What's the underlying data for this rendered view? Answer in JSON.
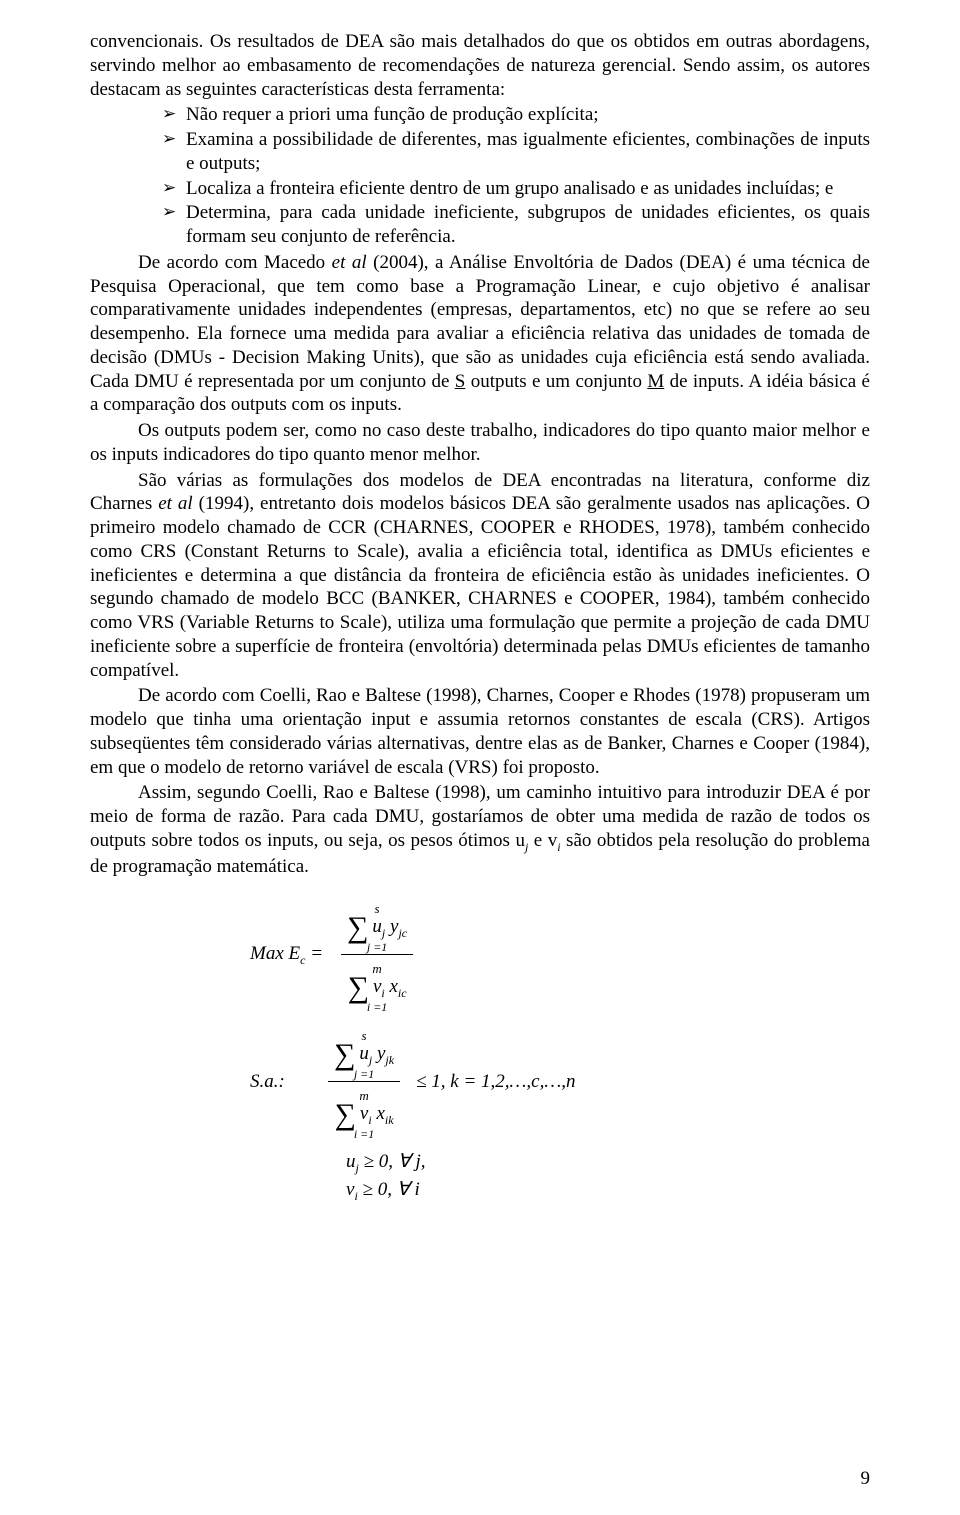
{
  "para1": "convencionais. Os resultados de DEA são mais detalhados do que os obtidos em outras abordagens, servindo melhor ao embasamento de recomendações de natureza gerencial. Sendo assim, os autores destacam as seguintes características desta ferramenta:",
  "bullets": {
    "b1": "Não requer a priori uma função de produção explícita;",
    "b2": "Examina a possibilidade de diferentes, mas igualmente eficientes, combinações de inputs e outputs;",
    "b3": "Localiza a fronteira eficiente dentro de um grupo analisado e as unidades incluídas; e",
    "b4": "Determina, para cada unidade ineficiente, subgrupos de unidades eficientes, os quais formam seu conjunto de referência."
  },
  "para2a": "De acordo com Macedo ",
  "para2b": "et al",
  "para2c": " (2004), a Análise Envoltória de Dados (DEA) é uma técnica de Pesquisa Operacional, que tem como base a Programação Linear, e cujo objetivo é analisar comparativamente unidades independentes (empresas, departamentos, etc) no que se refere ao seu desempenho. Ela fornece uma medida para avaliar a eficiência relativa das unidades de tomada de decisão (DMUs - Decision Making Units), que são as unidades cuja eficiência está sendo avaliada. Cada DMU é representada por um conjunto de ",
  "para2d": "S",
  "para2e": " outputs e um conjunto ",
  "para2f": "M",
  "para2g": " de inputs. A idéia básica é a comparação dos outputs com os inputs.",
  "para3": "Os outputs podem ser, como no caso deste trabalho, indicadores do tipo quanto maior melhor e os inputs indicadores do tipo quanto menor melhor.",
  "para4a": "São várias as formulações dos modelos de DEA encontradas na literatura, conforme diz Charnes ",
  "para4b": "et al",
  "para4c": " (1994), entretanto dois modelos básicos DEA são geralmente usados nas aplicações. O primeiro modelo chamado de CCR (CHARNES, COOPER e RHODES, 1978), também conhecido como CRS (Constant Returns to Scale), avalia a eficiência total, identifica as DMUs eficientes e ineficientes e determina a que distância da fronteira de eficiência estão às unidades ineficientes. O segundo chamado de modelo BCC (BANKER, CHARNES e COOPER, 1984), também conhecido como VRS (Variable Returns to Scale), utiliza uma formulação que permite a projeção de cada DMU ineficiente sobre a superfície de fronteira (envoltória) determinada pelas DMUs eficientes de tamanho compatível.",
  "para5": "De acordo com Coelli, Rao e Baltese (1998), Charnes, Cooper e Rhodes (1978) propuseram um modelo que tinha uma orientação input e assumia retornos constantes de escala (CRS). Artigos subseqüentes têm considerado várias alternativas, dentre elas as de Banker, Charnes e Cooper (1984), em que o modelo de retorno variável de escala (VRS) foi proposto.",
  "para6a": "Assim, segundo Coelli, Rao e Baltese (1998), um caminho intuitivo para introduzir DEA é por meio de forma de razão. Para cada DMU, gostaríamos de obter uma medida de razão de todos os outputs sobre todos os inputs, ou seja, os pesos ótimos u",
  "para6b": " e v",
  "para6c": " são obtidos pela resolução do problema de programação matemática.",
  "math": {
    "obj_lhs": "Max E",
    "obj_sub": "c",
    "eq": " = ",
    "sa": "S.a.:",
    "num1_top": "s",
    "num1_term": "u<span class=\"sub\">j</span> y<span class=\"sub\">jc</span>",
    "num1_bot": "j =1",
    "den1_top": "m",
    "den1_term": "v<span class=\"sub\">i</span> x<span class=\"sub\">ic</span>",
    "den1_bot": "i =1",
    "num2_top": "s",
    "num2_term": "u<span class=\"sub\">j</span> y<span class=\"sub\">jk</span>",
    "num2_bot": "j =1",
    "den2_top": "m",
    "den2_term": "v<span class=\"sub\">i</span> x<span class=\"sub\">ik</span>",
    "den2_bot": "i =1",
    "constr_rhs": "≤ 1, k = 1,2,…,c,…,n",
    "line3": "u<span class=\"sub\">j</span> ≥ 0, ∀ j,",
    "line4": "v<span class=\"sub\">i</span> ≥ 0, ∀ i"
  },
  "pagenum": "9"
}
